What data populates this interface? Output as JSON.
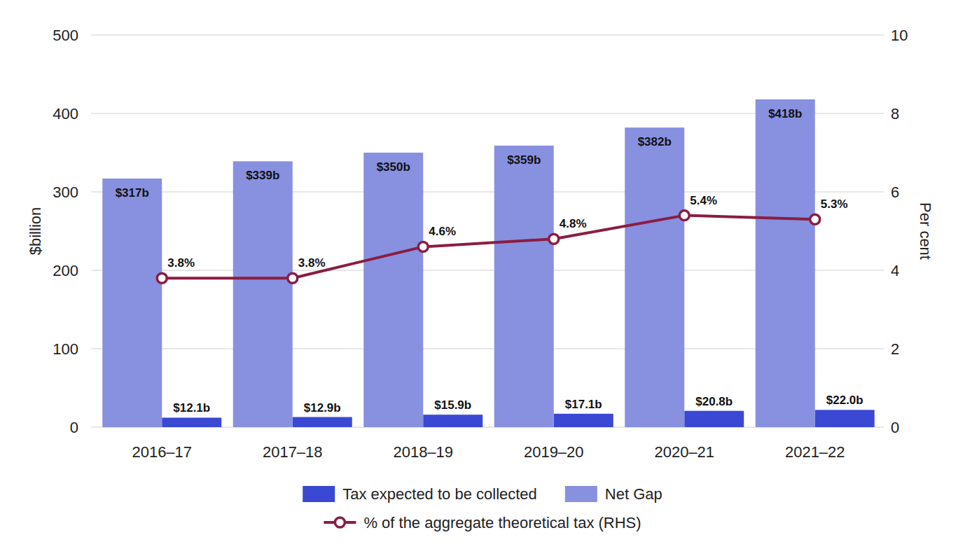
{
  "chart_data": {
    "type": "bar",
    "categories": [
      "2016–17",
      "2017–18",
      "2018–19",
      "2019–20",
      "2020–21",
      "2021–22"
    ],
    "series": [
      {
        "name": "Tax expected to be collected",
        "type": "bar",
        "color": "#3a48d3",
        "values": [
          12.1,
          12.9,
          15.9,
          17.1,
          20.8,
          22.0
        ],
        "value_labels": [
          "$12.1b",
          "$12.9b",
          "$15.9b",
          "$17.1b",
          "$20.8b",
          "$22.0b"
        ]
      },
      {
        "name": "Net Gap",
        "type": "bar",
        "color": "#8890e0",
        "values": [
          317,
          339,
          350,
          359,
          382,
          418
        ],
        "value_labels": [
          "$317b",
          "$339b",
          "$350b",
          "$359b",
          "$382b",
          "$418b"
        ]
      },
      {
        "name": "% of the aggregate theoretical tax (RHS)",
        "type": "line",
        "axis": "y2",
        "color": "#8b1d41",
        "marker": "circle",
        "values": [
          3.8,
          3.8,
          4.6,
          4.8,
          5.4,
          5.3
        ],
        "value_labels": [
          "3.8%",
          "3.8%",
          "4.6%",
          "4.8%",
          "5.4%",
          "5.3%"
        ]
      }
    ],
    "y_label": "$billion",
    "y2_label": "Per cent",
    "ylim": [
      0,
      500
    ],
    "yticks": [
      0,
      100,
      200,
      300,
      400,
      500
    ],
    "y2lim": [
      0,
      10
    ],
    "y2ticks": [
      0,
      2,
      4,
      6,
      8,
      10
    ],
    "grid": true,
    "legend": "bottom",
    "data_labels": true
  }
}
